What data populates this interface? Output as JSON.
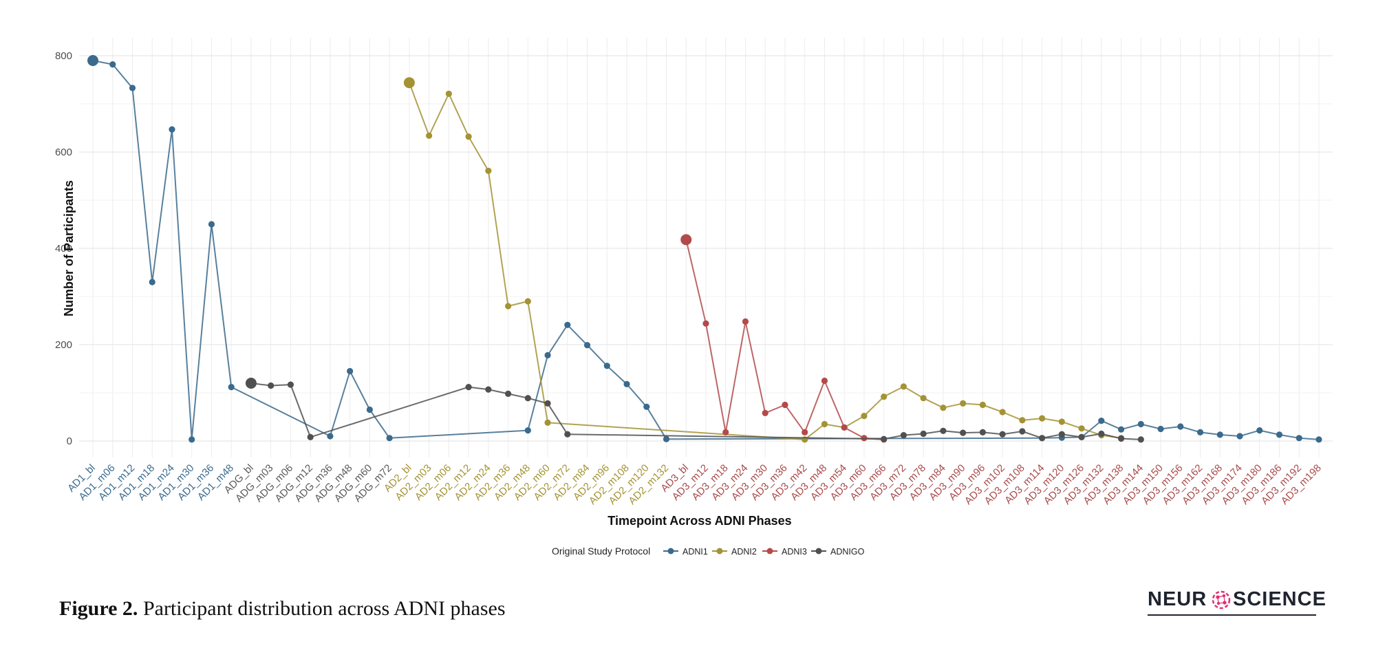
{
  "chart_data": {
    "type": "line",
    "xlabel": "Timepoint Across ADNI Phases",
    "ylabel": "Number of Participants",
    "ylim": [
      0,
      800
    ],
    "yticks": [
      0,
      200,
      400,
      600,
      800
    ],
    "grid": true,
    "legend_position": "bottom",
    "legend_title": "Original Study Protocol",
    "categories": [
      "AD1_bl",
      "AD1_m06",
      "AD1_m12",
      "AD1_m18",
      "AD1_m24",
      "AD1_m30",
      "AD1_m36",
      "AD1_m48",
      "ADG_bl",
      "ADG_m03",
      "ADG_m06",
      "ADG_m12",
      "ADG_m36",
      "ADG_m48",
      "ADG_m60",
      "ADG_m72",
      "AD2_bl",
      "AD2_m03",
      "AD2_m06",
      "AD2_m12",
      "AD2_m24",
      "AD2_m36",
      "AD2_m48",
      "AD2_m60",
      "AD2_m72",
      "AD2_m84",
      "AD2_m96",
      "AD2_m108",
      "AD2_m120",
      "AD2_m132",
      "AD3_bl",
      "AD3_m12",
      "AD3_m18",
      "AD3_m24",
      "AD3_m30",
      "AD3_m36",
      "AD3_m42",
      "AD3_m48",
      "AD3_m54",
      "AD3_m60",
      "AD3_m66",
      "AD3_m72",
      "AD3_m78",
      "AD3_m84",
      "AD3_m90",
      "AD3_m96",
      "AD3_m102",
      "AD3_m108",
      "AD3_m114",
      "AD3_m120",
      "AD3_m126",
      "AD3_m132",
      "AD3_m138",
      "AD3_m144",
      "AD3_m150",
      "AD3_m156",
      "AD3_m162",
      "AD3_m168",
      "AD3_m174",
      "AD3_m180",
      "AD3_m186",
      "AD3_m192",
      "AD3_m198"
    ],
    "category_groups": [
      {
        "prefix": "AD1",
        "color": "#3a6a8c"
      },
      {
        "prefix": "ADG",
        "color": "#5a5a5a"
      },
      {
        "prefix": "AD2",
        "color": "#a39334"
      },
      {
        "prefix": "AD3",
        "color": "#a84a4a"
      }
    ],
    "series": [
      {
        "name": "ADNI1",
        "color": "#3a6a8c",
        "points": [
          {
            "x": "AD1_bl",
            "y": 790
          },
          {
            "x": "AD1_m06",
            "y": 782
          },
          {
            "x": "AD1_m12",
            "y": 733
          },
          {
            "x": "AD1_m18",
            "y": 330
          },
          {
            "x": "AD1_m24",
            "y": 647
          },
          {
            "x": "AD1_m30",
            "y": 3
          },
          {
            "x": "AD1_m36",
            "y": 450
          },
          {
            "x": "AD1_m48",
            "y": 112
          },
          {
            "x": "ADG_m36",
            "y": 10
          },
          {
            "x": "ADG_m48",
            "y": 145
          },
          {
            "x": "ADG_m60",
            "y": 65
          },
          {
            "x": "ADG_m72",
            "y": 6
          },
          {
            "x": "AD2_m48",
            "y": 22
          },
          {
            "x": "AD2_m60",
            "y": 178
          },
          {
            "x": "AD2_m72",
            "y": 241
          },
          {
            "x": "AD2_m84",
            "y": 199
          },
          {
            "x": "AD2_m96",
            "y": 156
          },
          {
            "x": "AD2_m108",
            "y": 118
          },
          {
            "x": "AD2_m120",
            "y": 71
          },
          {
            "x": "AD2_m132",
            "y": 4
          },
          {
            "x": "AD3_m114",
            "y": 6
          },
          {
            "x": "AD3_m120",
            "y": 7
          },
          {
            "x": "AD3_m126",
            "y": 8
          },
          {
            "x": "AD3_m132",
            "y": 42
          },
          {
            "x": "AD3_m138",
            "y": 24
          },
          {
            "x": "AD3_m144",
            "y": 35
          },
          {
            "x": "AD3_m150",
            "y": 25
          },
          {
            "x": "AD3_m156",
            "y": 30
          },
          {
            "x": "AD3_m162",
            "y": 18
          },
          {
            "x": "AD3_m168",
            "y": 13
          },
          {
            "x": "AD3_m174",
            "y": 10
          },
          {
            "x": "AD3_m180",
            "y": 22
          },
          {
            "x": "AD3_m186",
            "y": 13
          },
          {
            "x": "AD3_m192",
            "y": 6
          },
          {
            "x": "AD3_m198",
            "y": 3
          }
        ]
      },
      {
        "name": "ADNI2",
        "color": "#a39334",
        "points": [
          {
            "x": "AD2_bl",
            "y": 744
          },
          {
            "x": "AD2_m03",
            "y": 634
          },
          {
            "x": "AD2_m06",
            "y": 721
          },
          {
            "x": "AD2_m12",
            "y": 632
          },
          {
            "x": "AD2_m24",
            "y": 561
          },
          {
            "x": "AD2_m36",
            "y": 280
          },
          {
            "x": "AD2_m48",
            "y": 290
          },
          {
            "x": "AD2_m60",
            "y": 38
          },
          {
            "x": "AD3_m42",
            "y": 3
          },
          {
            "x": "AD3_m48",
            "y": 35
          },
          {
            "x": "AD3_m54",
            "y": 28
          },
          {
            "x": "AD3_m60",
            "y": 52
          },
          {
            "x": "AD3_m66",
            "y": 92
          },
          {
            "x": "AD3_m72",
            "y": 113
          },
          {
            "x": "AD3_m78",
            "y": 89
          },
          {
            "x": "AD3_m84",
            "y": 69
          },
          {
            "x": "AD3_m90",
            "y": 78
          },
          {
            "x": "AD3_m96",
            "y": 75
          },
          {
            "x": "AD3_m102",
            "y": 60
          },
          {
            "x": "AD3_m108",
            "y": 43
          },
          {
            "x": "AD3_m114",
            "y": 47
          },
          {
            "x": "AD3_m120",
            "y": 40
          },
          {
            "x": "AD3_m126",
            "y": 26
          },
          {
            "x": "AD3_m132",
            "y": 12
          },
          {
            "x": "AD3_m138",
            "y": 6
          }
        ]
      },
      {
        "name": "ADNI3",
        "color": "#b34a4a",
        "points": [
          {
            "x": "AD3_bl",
            "y": 418
          },
          {
            "x": "AD3_m12",
            "y": 244
          },
          {
            "x": "AD3_m18",
            "y": 18
          },
          {
            "x": "AD3_m24",
            "y": 248
          },
          {
            "x": "AD3_m30",
            "y": 58
          },
          {
            "x": "AD3_m36",
            "y": 75
          },
          {
            "x": "AD3_m42",
            "y": 18
          },
          {
            "x": "AD3_m48",
            "y": 125
          },
          {
            "x": "AD3_m54",
            "y": 28
          },
          {
            "x": "AD3_m60",
            "y": 6
          },
          {
            "x": "AD3_m66",
            "y": 3
          }
        ]
      },
      {
        "name": "ADNIGO",
        "color": "#505050",
        "points": [
          {
            "x": "ADG_bl",
            "y": 120
          },
          {
            "x": "ADG_m03",
            "y": 115
          },
          {
            "x": "ADG_m06",
            "y": 117
          },
          {
            "x": "ADG_m12",
            "y": 8
          },
          {
            "x": "AD2_m12",
            "y": 112
          },
          {
            "x": "AD2_m24",
            "y": 107
          },
          {
            "x": "AD2_m36",
            "y": 98
          },
          {
            "x": "AD2_m48",
            "y": 89
          },
          {
            "x": "AD2_m60",
            "y": 78
          },
          {
            "x": "AD2_m72",
            "y": 14
          },
          {
            "x": "AD3_m66",
            "y": 4
          },
          {
            "x": "AD3_m72",
            "y": 12
          },
          {
            "x": "AD3_m78",
            "y": 15
          },
          {
            "x": "AD3_m84",
            "y": 21
          },
          {
            "x": "AD3_m90",
            "y": 17
          },
          {
            "x": "AD3_m96",
            "y": 18
          },
          {
            "x": "AD3_m102",
            "y": 14
          },
          {
            "x": "AD3_m108",
            "y": 20
          },
          {
            "x": "AD3_m114",
            "y": 6
          },
          {
            "x": "AD3_m120",
            "y": 14
          },
          {
            "x": "AD3_m126",
            "y": 8
          },
          {
            "x": "AD3_m132",
            "y": 15
          },
          {
            "x": "AD3_m138",
            "y": 5
          },
          {
            "x": "AD3_m144",
            "y": 3
          }
        ]
      }
    ]
  },
  "caption": {
    "label": "Figure 2.",
    "text": " Participant distribution across ADNI phases"
  },
  "logo": {
    "left_text": "NEUR",
    "right_text": "SCIENCE",
    "icon": "brain-network-icon"
  }
}
